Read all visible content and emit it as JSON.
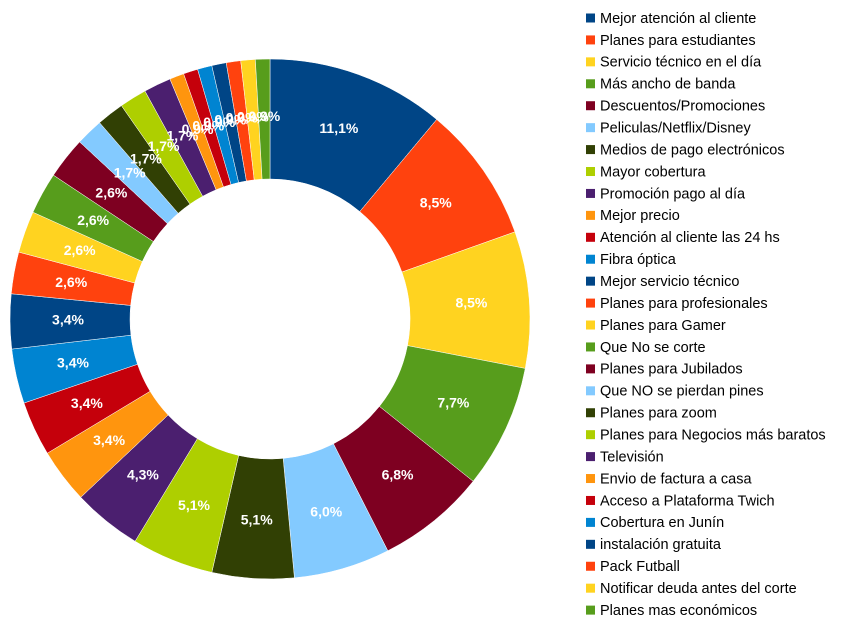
{
  "chart_data": {
    "type": "donut",
    "categories": [
      "Mejor atención al cliente",
      "Planes para estudiantes",
      "Servicio técnico en el día",
      "Más ancho de banda",
      "Descuentos/Promociones",
      "Peliculas/Netflix/Disney",
      "Medios de pago electrónicos",
      "Mayor cobertura",
      "Promoción pago al día",
      "Mejor precio",
      "Atención al cliente las 24 hs",
      "Fibra óptica",
      "Mejor servicio técnico",
      "Planes para profesionales",
      "Planes para Gamer",
      "Que No se corte",
      "Planes para Jubilados",
      "Que NO se pierdan pines",
      "Planes para zoom",
      "Planes para Negocios más baratos",
      "Televisión",
      "Envio de factura a casa",
      "Acceso a Plataforma Twich",
      "Cobertura en Junín",
      "instalación gratuita",
      "Pack Futball",
      "Notificar deuda antes del corte",
      "Planes mas económicos"
    ],
    "values": [
      11.1,
      8.5,
      8.5,
      7.7,
      6.8,
      6.0,
      5.1,
      5.1,
      4.3,
      3.4,
      3.4,
      3.4,
      3.4,
      2.6,
      2.6,
      2.6,
      2.6,
      1.7,
      1.7,
      1.7,
      1.7,
      0.9,
      0.9,
      0.9,
      0.9,
      0.9,
      0.9,
      0.9
    ],
    "value_labels": [
      "11,1%",
      "8,5%",
      "8,5%",
      "7,7%",
      "6,8%",
      "6,0%",
      "5,1%",
      "5,1%",
      "4,3%",
      "3,4%",
      "3,4%",
      "3,4%",
      "3,4%",
      "2,6%",
      "2,6%",
      "2,6%",
      "2,6%",
      "1,7%",
      "1,7%",
      "1,7%",
      "1,7%",
      "0,9%",
      "0,9%",
      "0,9%",
      "0,9%",
      "0,9%",
      "0,9%",
      "0,9%"
    ],
    "colors": [
      "#004586",
      "#ff420e",
      "#ffd320",
      "#579d1c",
      "#7e0021",
      "#83caff",
      "#314004",
      "#aecf00",
      "#4b1f6f",
      "#ff950e",
      "#c5000b",
      "#0084d1",
      "#004586",
      "#ff420e",
      "#ffd320",
      "#579d1c",
      "#7e0021",
      "#83caff",
      "#314004",
      "#aecf00",
      "#4b1f6f",
      "#ff950e",
      "#c5000b",
      "#0084d1",
      "#004586",
      "#ff420e",
      "#ffd320",
      "#579d1c"
    ],
    "legend": "right"
  }
}
